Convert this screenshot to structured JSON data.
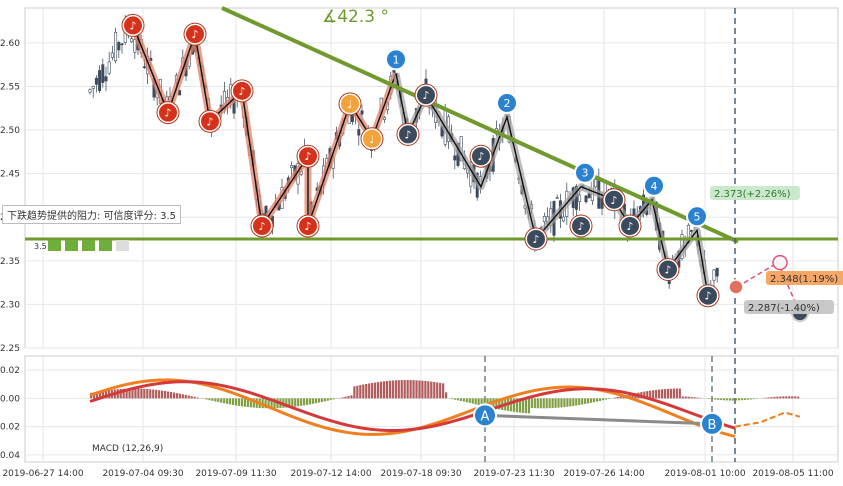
{
  "chart_data": [
    {
      "type": "line",
      "panel": "price",
      "y_ticks": [
        "2.25",
        "2.30",
        "2.35",
        "2.40",
        "2.45",
        "2.50",
        "2.55",
        "2.60"
      ],
      "ylim": [
        2.25,
        2.64
      ],
      "grid": true,
      "angle_label": "∡42.3 °",
      "resistance_note": "下跌趋势提供的阻力: 可信度评分: 3.5",
      "rating": {
        "score": "3.5",
        "stars": 5
      },
      "support_level": 2.375,
      "annotations": [
        {
          "text": "2.373(+2.26%)",
          "value": 2.373,
          "color": "#2e7d32",
          "bg": "#c8e6c9"
        },
        {
          "text": "2.348(1.19%)",
          "value": 2.348,
          "color": "#333333",
          "bg": "#f5a25d"
        },
        {
          "text": "2.287(-1.40%)",
          "value": 2.287,
          "color": "#333333",
          "bg": "#c5c5c5"
        }
      ],
      "wave_labels": [
        "1",
        "2",
        "3",
        "4",
        "5"
      ],
      "wave_values": [
        2.565,
        2.515,
        2.435,
        2.42,
        2.385
      ],
      "points_red": [
        2.62,
        2.61,
        2.52,
        2.51,
        2.545,
        2.39,
        2.47,
        2.39
      ],
      "points_orange": [
        2.53,
        2.49
      ],
      "points_dark": [
        2.54,
        2.495,
        2.47,
        2.375,
        2.39,
        2.42,
        2.39,
        2.34,
        2.31
      ],
      "colors": {
        "trend": "#6f9a2e",
        "support": "#6f9a2e",
        "zigzag_red": "#e0826a",
        "zigzag_gray": "#a0a0a0"
      }
    },
    {
      "type": "line",
      "panel": "macd",
      "label": "MACD (12,26,9)",
      "y_ticks": [
        "0.02",
        "0.00",
        "-0.02",
        "-0.04"
      ],
      "ylim": [
        -0.045,
        0.03
      ],
      "markers": [
        "A",
        "B"
      ],
      "series_colors": {
        "dif": "#f07f1f",
        "dea": "#d43a3a",
        "hist_pos": "#a34040",
        "hist_neg": "#6b8e23"
      }
    }
  ],
  "x_ticks": [
    "2019-06-27 14:00",
    "2019-07-04 09:30",
    "2019-07-09 11:30",
    "2019-07-12 14:00",
    "2019-07-18 09:30",
    "2019-07-23 11:30",
    "2019-07-26 14:00",
    "2019-08-01 10:00",
    "2019-08-05 11:00"
  ]
}
